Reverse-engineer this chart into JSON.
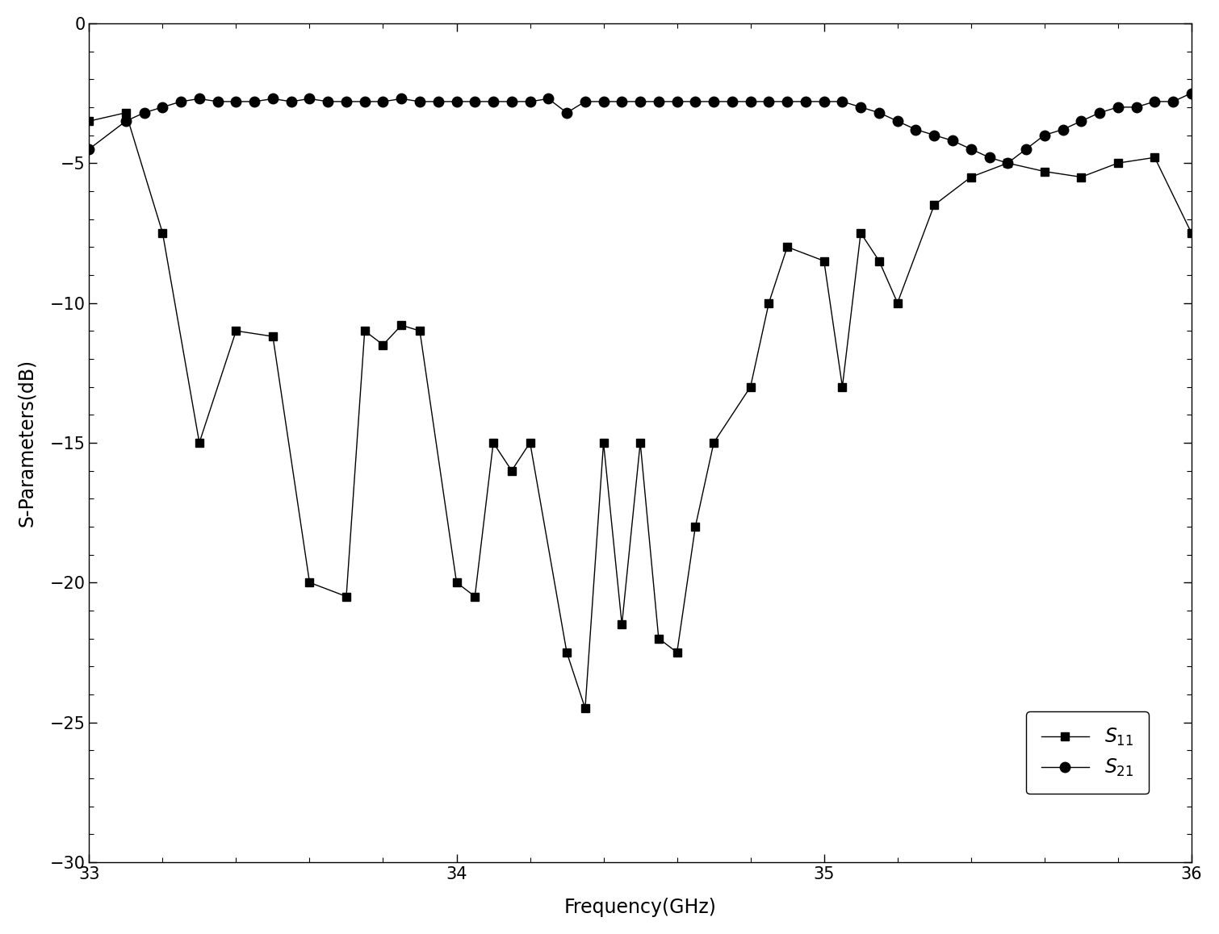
{
  "S11_x": [
    33.0,
    33.1,
    33.2,
    33.3,
    33.4,
    33.5,
    33.6,
    33.7,
    33.75,
    33.8,
    33.85,
    33.9,
    34.0,
    34.05,
    34.1,
    34.15,
    34.2,
    34.3,
    34.35,
    34.4,
    34.45,
    34.5,
    34.55,
    34.6,
    34.65,
    34.7,
    34.8,
    34.85,
    34.9,
    35.0,
    35.05,
    35.1,
    35.15,
    35.2,
    35.3,
    35.4,
    35.5,
    35.6,
    35.7,
    35.8,
    35.9,
    36.0
  ],
  "S11_y": [
    -3.5,
    -3.2,
    -7.5,
    -15.0,
    -11.0,
    -11.2,
    -20.0,
    -20.5,
    -11.0,
    -11.5,
    -10.8,
    -11.0,
    -20.0,
    -20.5,
    -15.0,
    -16.0,
    -15.0,
    -22.5,
    -24.5,
    -15.0,
    -21.5,
    -15.0,
    -22.0,
    -22.5,
    -18.0,
    -15.0,
    -13.0,
    -10.0,
    -8.0,
    -8.5,
    -13.0,
    -7.5,
    -8.5,
    -10.0,
    -6.5,
    -5.5,
    -5.0,
    -5.3,
    -5.5,
    -5.0,
    -4.8,
    -7.5
  ],
  "S21_x": [
    33.0,
    33.1,
    33.15,
    33.2,
    33.25,
    33.3,
    33.35,
    33.4,
    33.45,
    33.5,
    33.55,
    33.6,
    33.65,
    33.7,
    33.75,
    33.8,
    33.85,
    33.9,
    33.95,
    34.0,
    34.05,
    34.1,
    34.15,
    34.2,
    34.25,
    34.3,
    34.35,
    34.4,
    34.45,
    34.5,
    34.55,
    34.6,
    34.65,
    34.7,
    34.75,
    34.8,
    34.85,
    34.9,
    34.95,
    35.0,
    35.05,
    35.1,
    35.15,
    35.2,
    35.25,
    35.3,
    35.35,
    35.4,
    35.45,
    35.5,
    35.55,
    35.6,
    35.65,
    35.7,
    35.75,
    35.8,
    35.85,
    35.9,
    35.95,
    36.0
  ],
  "S21_y": [
    -4.5,
    -3.5,
    -3.2,
    -3.0,
    -2.8,
    -2.7,
    -2.8,
    -2.8,
    -2.8,
    -2.7,
    -2.8,
    -2.7,
    -2.8,
    -2.8,
    -2.8,
    -2.8,
    -2.7,
    -2.8,
    -2.8,
    -2.8,
    -2.8,
    -2.8,
    -2.8,
    -2.8,
    -2.7,
    -3.2,
    -2.8,
    -2.8,
    -2.8,
    -2.8,
    -2.8,
    -2.8,
    -2.8,
    -2.8,
    -2.8,
    -2.8,
    -2.8,
    -2.8,
    -2.8,
    -2.8,
    -2.8,
    -3.0,
    -3.2,
    -3.5,
    -3.8,
    -4.0,
    -4.2,
    -4.5,
    -4.8,
    -5.0,
    -4.5,
    -4.0,
    -3.8,
    -3.5,
    -3.2,
    -3.0,
    -3.0,
    -2.8,
    -2.8,
    -2.5
  ],
  "xlabel": "Frequency(GHz)",
  "ylabel": "S-Parameters(dB)",
  "xlim": [
    33,
    36
  ],
  "ylim": [
    -30,
    0
  ],
  "xticks": [
    33,
    34,
    35,
    36
  ],
  "yticks": [
    0,
    -5,
    -10,
    -15,
    -20,
    -25,
    -30
  ],
  "S11_color": "#000000",
  "S21_color": "#000000",
  "S11_marker": "s",
  "S21_marker": "o",
  "S11_markersize": 7,
  "S21_markersize": 9,
  "linewidth": 1.0,
  "background_color": "#ffffff",
  "tick_fontsize": 15,
  "label_fontsize": 17
}
